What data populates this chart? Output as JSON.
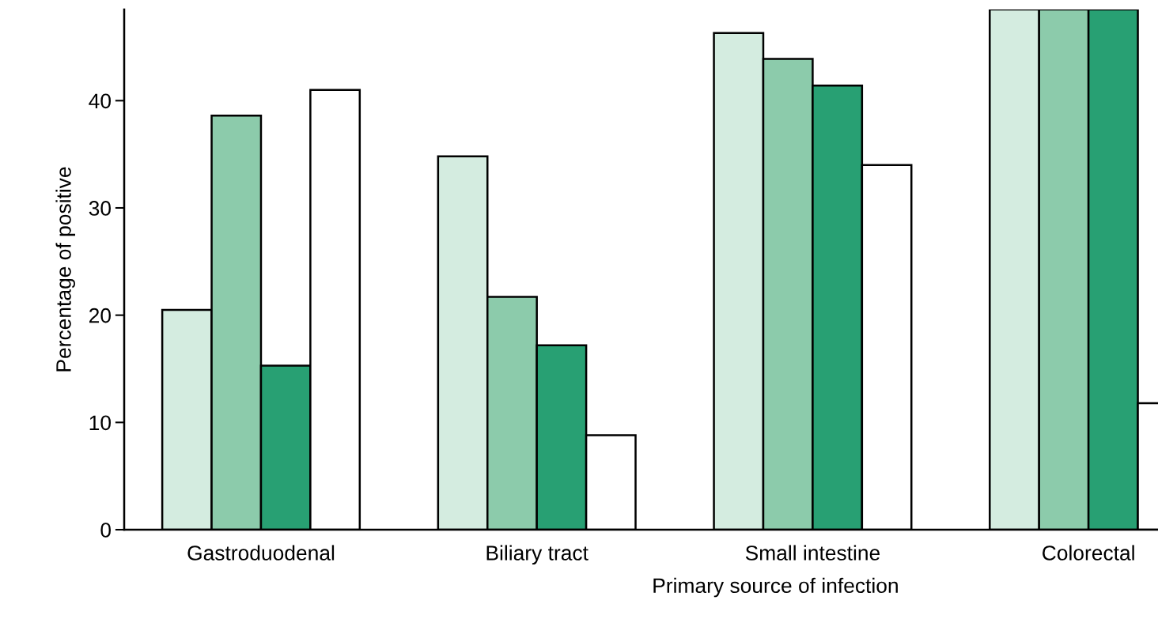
{
  "chart_data": {
    "type": "bar",
    "xlabel": "Primary source of infection",
    "ylabel": "Percentage of positive",
    "categories": [
      "Gastroduodenal",
      "Biliary tract",
      "Small intestine",
      "Colorectal"
    ],
    "series": [
      {
        "color": "#d4ece0",
        "values": [
          20.5,
          34.8,
          46.3,
          48.5
        ]
      },
      {
        "color": "#8ccbab",
        "values": [
          38.6,
          21.7,
          43.9,
          48.5
        ]
      },
      {
        "color": "#28a073",
        "values": [
          15.3,
          17.2,
          41.4,
          48.5
        ]
      },
      {
        "color": "#ffffff",
        "values": [
          41.0,
          8.8,
          34.0,
          11.8
        ]
      }
    ],
    "ylim": [
      0,
      48.5
    ],
    "yticks": [
      0,
      10,
      20,
      30,
      40
    ],
    "grid": false,
    "legend": false
  }
}
